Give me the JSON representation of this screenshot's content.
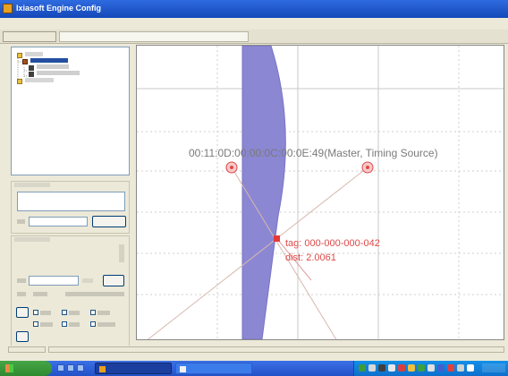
{
  "window": {
    "title": "Ixiasoft Engine Config"
  },
  "canvas": {
    "master_label": "00:11:0D:00:00:0C:00:0E:49(Master, Timing Source)",
    "probe_tag": "tag: 000-000-000-042",
    "probe_distance": "dist: 2.0061"
  },
  "colors": {
    "title_bar": "#1448B8",
    "zone_fill": "#8B87D2",
    "marker_red": "#E04848",
    "label_gray": "#7a7a7a",
    "probe_text": "#E04848"
  }
}
